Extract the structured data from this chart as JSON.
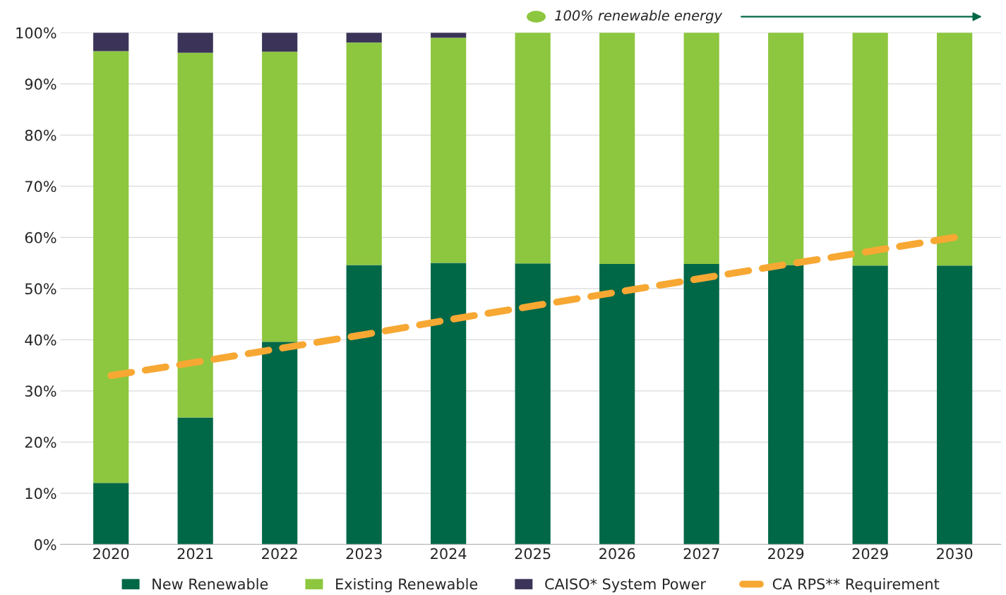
{
  "chart_data": {
    "type": "bar",
    "stacked": true,
    "categories": [
      "2020",
      "2021",
      "2022",
      "2023",
      "2024",
      "2025",
      "2026",
      "2027",
      "2029",
      "2029",
      "2030"
    ],
    "series": [
      {
        "name": "New Renewable",
        "color": "#006747",
        "values": [
          12.0,
          24.8,
          39.6,
          54.6,
          55.0,
          54.9,
          54.8,
          54.8,
          54.6,
          54.5,
          54.5
        ]
      },
      {
        "name": "Existing Renewable",
        "color": "#8dc63f",
        "values": [
          84.4,
          71.3,
          56.7,
          43.5,
          44.0,
          45.1,
          45.2,
          45.2,
          45.4,
          45.5,
          45.5
        ]
      },
      {
        "name": "CAISO* System Power",
        "color": "#3b3458",
        "values": [
          3.6,
          3.9,
          3.7,
          1.9,
          1.0,
          null,
          null,
          null,
          null,
          null,
          null
        ]
      },
      {
        "name": "CA RPS** Requirement",
        "type": "line",
        "line_style": "dashed",
        "color": "#f7a833",
        "values": [
          33.0,
          35.6,
          38.3,
          41.0,
          43.9,
          46.6,
          49.3,
          52.0,
          54.7,
          57.3,
          60.0
        ]
      }
    ],
    "ylim": [
      0,
      100
    ],
    "yticks": [
      {
        "value": 0,
        "label": "0%"
      },
      {
        "value": 10,
        "label": "10%"
      },
      {
        "value": 20,
        "label": "20%"
      },
      {
        "value": 30,
        "label": "30%"
      },
      {
        "value": 40,
        "label": "40%"
      },
      {
        "value": 50,
        "label": "50%"
      },
      {
        "value": 60,
        "label": "60%"
      },
      {
        "value": 70,
        "label": "70%"
      },
      {
        "value": 80,
        "label": "80%"
      },
      {
        "value": 90,
        "label": "90%"
      },
      {
        "value": 100,
        "label": "100%"
      }
    ],
    "annotations": [
      "100% renewable energy"
    ],
    "grid": "y",
    "legend": "bottom"
  }
}
